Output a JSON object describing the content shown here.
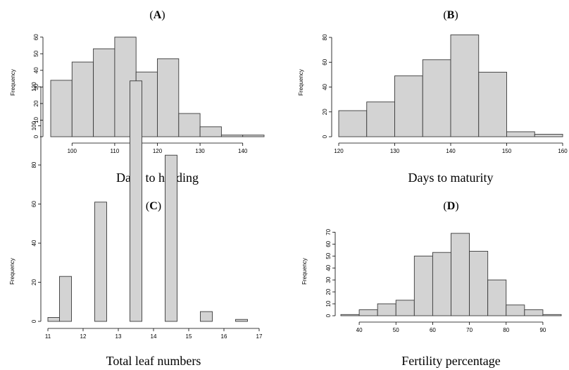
{
  "chart_data": [
    {
      "panel": "A",
      "type": "bar",
      "variant": "histogram",
      "xlabel": "Days to heading",
      "ylabel": "Frequency",
      "bin_edges": [
        95,
        100,
        105,
        110,
        115,
        120,
        125,
        130,
        135,
        140,
        145
      ],
      "values": [
        34,
        45,
        53,
        60,
        39,
        47,
        14,
        6,
        1,
        1
      ],
      "xlim": [
        95,
        145
      ],
      "ylim": [
        0,
        62
      ],
      "xticks": [
        100,
        110,
        120,
        130,
        140
      ],
      "yticks": [
        0,
        10,
        20,
        30,
        40,
        50,
        60
      ]
    },
    {
      "panel": "B",
      "type": "bar",
      "variant": "histogram",
      "xlabel": "Days to maturity",
      "ylabel": "Frequency",
      "bin_edges": [
        120,
        125,
        130,
        135,
        140,
        145,
        150,
        155,
        160
      ],
      "values": [
        21,
        28,
        49,
        62,
        82,
        52,
        4,
        2
      ],
      "xlim": [
        120,
        160
      ],
      "ylim": [
        0,
        84
      ],
      "xticks": [
        120,
        130,
        140,
        150,
        160
      ],
      "yticks": [
        0,
        20,
        40,
        60,
        80
      ]
    },
    {
      "panel": "C",
      "type": "bar",
      "variant": "histogram",
      "xlabel": "Total leaf numbers",
      "ylabel": "Frequency",
      "bin_edges": [
        11,
        11.33,
        11.67,
        12,
        12.33,
        12.67,
        13,
        13.33,
        13.67,
        14,
        14.33,
        14.67,
        15,
        15.33,
        15.67,
        16,
        16.33,
        16.67,
        17
      ],
      "values": [
        2,
        23,
        0,
        0,
        61,
        0,
        0,
        123,
        0,
        0,
        85,
        0,
        0,
        5,
        0,
        0,
        1,
        0
      ],
      "xlim": [
        11,
        17
      ],
      "ylim": [
        0,
        124
      ],
      "xticks": [
        11,
        12,
        13,
        14,
        15,
        16,
        17
      ],
      "yticks": [
        0,
        20,
        40,
        60,
        80,
        100,
        120
      ]
    },
    {
      "panel": "D",
      "type": "bar",
      "variant": "histogram",
      "xlabel": "Fertility percentage",
      "ylabel": "Frequency",
      "bin_edges": [
        35,
        40,
        45,
        50,
        55,
        60,
        65,
        70,
        75,
        80,
        85,
        90,
        95
      ],
      "values": [
        1,
        5,
        10,
        13,
        50,
        53,
        69,
        54,
        30,
        9,
        5,
        1
      ],
      "xlim": [
        35,
        95
      ],
      "ylim": [
        0,
        72
      ],
      "xticks": [
        40,
        50,
        60,
        70,
        80,
        90
      ],
      "yticks": [
        0,
        10,
        20,
        30,
        40,
        50,
        60,
        70
      ]
    }
  ]
}
